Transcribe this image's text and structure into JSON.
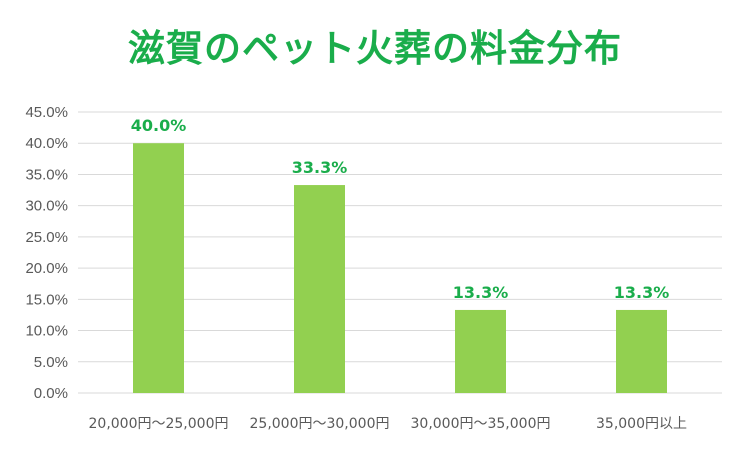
{
  "chart_data": {
    "type": "bar",
    "title": "滋賀のペット火葬の料金分布",
    "categories": [
      "20,000円～25,000円",
      "25,000円～30,000円",
      "30,000円～35,000円",
      "35,000円以上"
    ],
    "values": [
      40.0,
      33.3,
      13.3,
      13.3
    ],
    "data_labels": [
      "40.0%",
      "33.3%",
      "13.3%",
      "13.3%"
    ],
    "ylim": [
      0,
      45
    ],
    "yticks": [
      0,
      5,
      10,
      15,
      20,
      25,
      30,
      35,
      40,
      45
    ],
    "ytick_labels": [
      "0.0%",
      "5.0%",
      "10.0%",
      "15.0%",
      "20.0%",
      "25.0%",
      "30.0%",
      "35.0%",
      "40.0%",
      "45.0%"
    ],
    "xlabel": "",
    "ylabel": "",
    "grid": true,
    "legend": "none",
    "colors": {
      "bar": "#92d050",
      "title": "#1aad4b",
      "data_label": "#1aad4b",
      "grid": "#d9d9d9",
      "axis_text": "#595959"
    }
  }
}
